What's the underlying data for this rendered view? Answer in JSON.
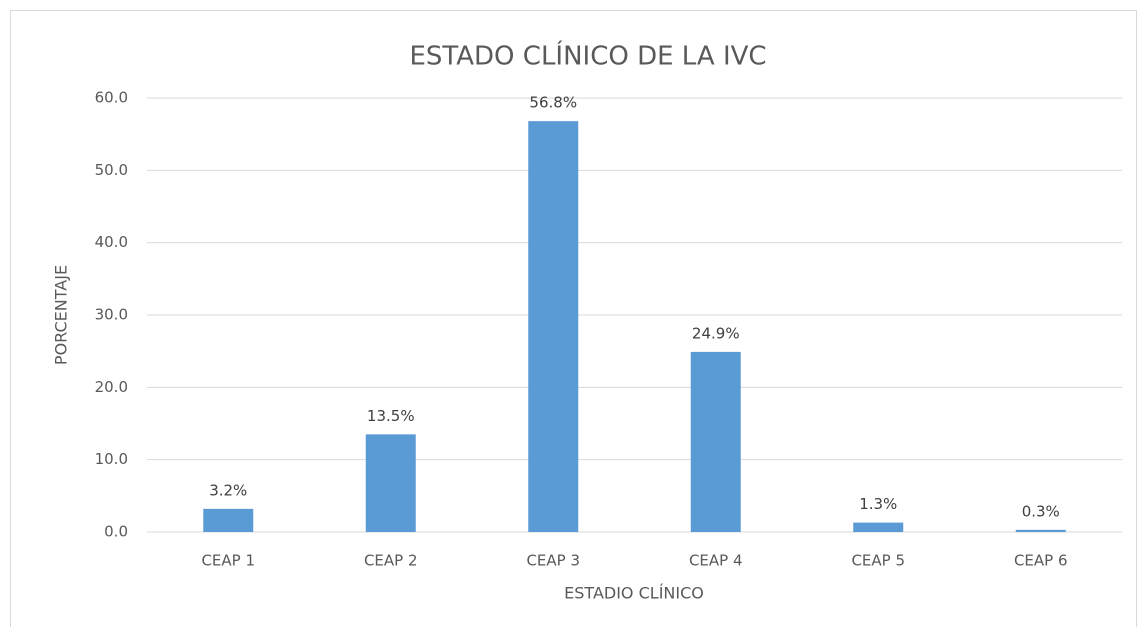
{
  "chart_data": {
    "type": "bar",
    "title": "ESTADO CLÍNICO DE LA IVC",
    "x_label": "ESTADIO CLÍNICO",
    "y_label": "PORCENTAJE",
    "categories": [
      "CEAP 1",
      "CEAP 2",
      "CEAP 3",
      "CEAP 4",
      "CEAP 5",
      "CEAP 6"
    ],
    "values": [
      3.2,
      13.5,
      56.8,
      24.9,
      1.3,
      0.3
    ],
    "value_labels": [
      "3.2%",
      "13.5%",
      "56.8%",
      "24.9%",
      "1.3%",
      "0.3%"
    ],
    "color": "#5b9bd5",
    "ylim": [
      0,
      60
    ],
    "yticks": [
      {
        "value": 0,
        "label": "0.0"
      },
      {
        "value": 10,
        "label": "10.0"
      },
      {
        "value": 20,
        "label": "20.0"
      },
      {
        "value": 30,
        "label": "30.0"
      },
      {
        "value": 40,
        "label": "40.0"
      },
      {
        "value": 50,
        "label": "50.0"
      },
      {
        "value": 60,
        "label": "60.0"
      }
    ],
    "grid": true
  }
}
